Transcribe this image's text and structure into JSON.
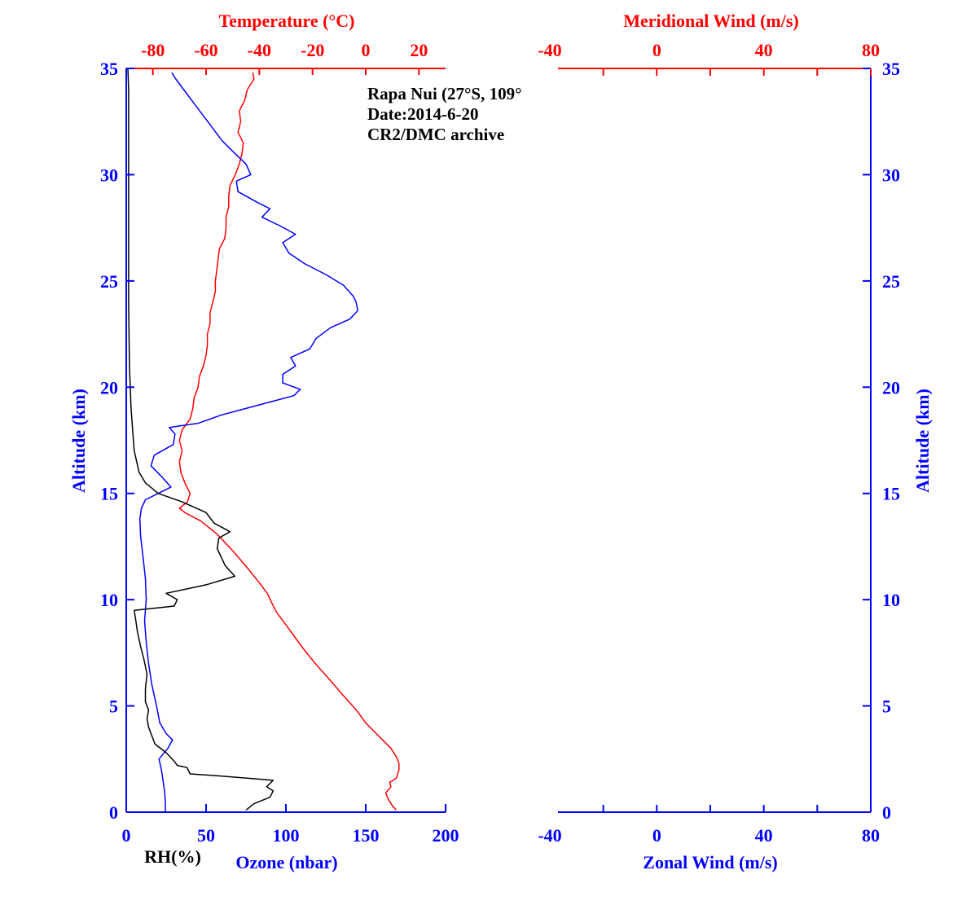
{
  "info": {
    "line1": "Rapa Nui (27°S, 109°",
    "line2": "Date:2014-6-20",
    "line3": "CR2/DMC archive"
  },
  "colors": {
    "ozone": "#0000ff",
    "temperature": "#ff0000",
    "rh": "#000000",
    "axis_blue": "#0000ff",
    "axis_red": "#ff0000"
  },
  "chart_data": [
    {
      "type": "line",
      "panel": "left",
      "xlabel": "Ozone (nbar)",
      "xlabel_secondary": "RH(%)",
      "x2label": "Temperature (°C)",
      "ylabel": "Altitude (km)",
      "xlim": [
        0,
        200
      ],
      "x2lim": [
        -90,
        30
      ],
      "ylim": [
        0,
        35
      ],
      "x_ticks": [
        0,
        50,
        100,
        150,
        200
      ],
      "x2_ticks": [
        -80,
        -60,
        -40,
        -20,
        0,
        20
      ],
      "y_ticks": [
        0,
        5,
        10,
        15,
        20,
        25,
        30,
        35
      ],
      "series": [
        {
          "name": "Temperature",
          "axis": "x2",
          "color": "#ff0000",
          "points": [
            [
              11.5,
              0.1
            ],
            [
              10.0,
              0.3
            ],
            [
              8.5,
              0.6
            ],
            [
              7.5,
              0.9
            ],
            [
              9.5,
              1.2
            ],
            [
              9.0,
              1.4
            ],
            [
              11.5,
              1.6
            ],
            [
              12.5,
              2.0
            ],
            [
              12.5,
              2.3
            ],
            [
              11.5,
              2.6
            ],
            [
              9.5,
              3.0
            ],
            [
              5.5,
              3.5
            ],
            [
              0.0,
              4.2
            ],
            [
              -3.5,
              4.8
            ],
            [
              -8.5,
              5.5
            ],
            [
              -14.0,
              6.3
            ],
            [
              -19.0,
              7.0
            ],
            [
              -23.5,
              7.7
            ],
            [
              -27.0,
              8.3
            ],
            [
              -30.5,
              8.9
            ],
            [
              -33.5,
              9.4
            ],
            [
              -35.5,
              9.9
            ],
            [
              -37.0,
              10.3
            ],
            [
              -40.0,
              10.8
            ],
            [
              -44.5,
              11.5
            ],
            [
              -50.0,
              12.3
            ],
            [
              -56.0,
              13.1
            ],
            [
              -62.0,
              13.7
            ],
            [
              -68.0,
              14.1
            ],
            [
              -70.0,
              14.3
            ],
            [
              -67.0,
              14.6
            ],
            [
              -66.0,
              15.0
            ],
            [
              -68.0,
              15.5
            ],
            [
              -69.5,
              16.0
            ],
            [
              -70.0,
              16.5
            ],
            [
              -69.0,
              17.0
            ],
            [
              -70.0,
              17.5
            ],
            [
              -69.0,
              18.0
            ],
            [
              -66.0,
              18.5
            ],
            [
              -65.0,
              19.0
            ],
            [
              -64.5,
              19.5
            ],
            [
              -63.0,
              20.0
            ],
            [
              -62.5,
              20.5
            ],
            [
              -61.0,
              21.0
            ],
            [
              -60.0,
              21.5
            ],
            [
              -59.5,
              22.0
            ],
            [
              -59.5,
              22.5
            ],
            [
              -58.5,
              23.0
            ],
            [
              -58.5,
              23.5
            ],
            [
              -57.5,
              24.0
            ],
            [
              -56.5,
              24.5
            ],
            [
              -56.5,
              25.0
            ],
            [
              -56.0,
              25.5
            ],
            [
              -55.5,
              26.0
            ],
            [
              -55.0,
              26.5
            ],
            [
              -53.0,
              27.0
            ],
            [
              -52.5,
              27.5
            ],
            [
              -52.5,
              28.0
            ],
            [
              -51.5,
              28.5
            ],
            [
              -51.5,
              29.0
            ],
            [
              -51.0,
              29.5
            ],
            [
              -49.0,
              30.0
            ],
            [
              -47.5,
              30.5
            ],
            [
              -46.5,
              31.0
            ],
            [
              -46.0,
              31.5
            ],
            [
              -48.0,
              32.0
            ],
            [
              -47.0,
              32.5
            ],
            [
              -47.5,
              33.0
            ],
            [
              -45.5,
              33.5
            ],
            [
              -44.5,
              34.0
            ],
            [
              -42.0,
              34.5
            ],
            [
              -42.5,
              34.8
            ]
          ]
        },
        {
          "name": "Ozone",
          "axis": "x",
          "color": "#0000ff",
          "points": [
            [
              24.5,
              0.0
            ],
            [
              24.5,
              0.5
            ],
            [
              24.0,
              1.0
            ],
            [
              23.0,
              1.5
            ],
            [
              22.0,
              2.0
            ],
            [
              20.5,
              2.5
            ],
            [
              26.0,
              3.0
            ],
            [
              29.0,
              3.4
            ],
            [
              25.0,
              3.7
            ],
            [
              21.0,
              4.2
            ],
            [
              19.0,
              5.0
            ],
            [
              16.0,
              6.0
            ],
            [
              14.0,
              7.0
            ],
            [
              12.5,
              8.0
            ],
            [
              11.5,
              9.0
            ],
            [
              12.5,
              10.0
            ],
            [
              12.0,
              11.0
            ],
            [
              10.5,
              12.0
            ],
            [
              9.0,
              13.0
            ],
            [
              8.5,
              13.8
            ],
            [
              9.5,
              14.3
            ],
            [
              12.0,
              14.7
            ],
            [
              20.0,
              15.0
            ],
            [
              28.0,
              15.3
            ],
            [
              22.0,
              15.8
            ],
            [
              15.5,
              16.3
            ],
            [
              17.5,
              16.8
            ],
            [
              29.5,
              17.3
            ],
            [
              30.5,
              17.8
            ],
            [
              27.0,
              18.1
            ],
            [
              45.0,
              18.3
            ],
            [
              60.0,
              18.7
            ],
            [
              75.0,
              19.0
            ],
            [
              90.0,
              19.3
            ],
            [
              105.0,
              19.6
            ],
            [
              109.0,
              19.9
            ],
            [
              98.0,
              20.2
            ],
            [
              98.0,
              20.6
            ],
            [
              106.0,
              21.0
            ],
            [
              103.0,
              21.4
            ],
            [
              115.0,
              21.8
            ],
            [
              119.0,
              22.3
            ],
            [
              128.0,
              22.8
            ],
            [
              140.0,
              23.2
            ],
            [
              145.0,
              23.6
            ],
            [
              144.0,
              24.0
            ],
            [
              142.0,
              24.3
            ],
            [
              136.0,
              24.8
            ],
            [
              125.0,
              25.3
            ],
            [
              112.0,
              25.8
            ],
            [
              102.0,
              26.3
            ],
            [
              98.0,
              26.8
            ],
            [
              106.0,
              27.2
            ],
            [
              96.0,
              27.6
            ],
            [
              85.0,
              28.0
            ],
            [
              90.0,
              28.4
            ],
            [
              82.0,
              28.7
            ],
            [
              70.0,
              29.2
            ],
            [
              69.0,
              29.7
            ],
            [
              78.0,
              30.0
            ],
            [
              75.0,
              30.5
            ],
            [
              68.0,
              31.0
            ],
            [
              60.0,
              31.6
            ],
            [
              55.0,
              32.1
            ],
            [
              50.0,
              32.6
            ],
            [
              45.0,
              33.1
            ],
            [
              40.0,
              33.6
            ],
            [
              35.0,
              34.1
            ],
            [
              31.0,
              34.5
            ],
            [
              28.5,
              34.8
            ]
          ]
        },
        {
          "name": "RH",
          "axis": "x",
          "color": "#000000",
          "points": [
            [
              75.0,
              0.1
            ],
            [
              80.0,
              0.4
            ],
            [
              90.0,
              0.7
            ],
            [
              92.0,
              1.0
            ],
            [
              88.0,
              1.2
            ],
            [
              92.0,
              1.5
            ],
            [
              60.0,
              1.7
            ],
            [
              40.0,
              1.8
            ],
            [
              38.0,
              2.1
            ],
            [
              32.0,
              2.2
            ],
            [
              30.0,
              2.4
            ],
            [
              25.0,
              2.8
            ],
            [
              18.0,
              3.2
            ],
            [
              16.0,
              3.6
            ],
            [
              14.0,
              4.0
            ],
            [
              13.0,
              4.4
            ],
            [
              14.0,
              4.8
            ],
            [
              12.0,
              5.2
            ],
            [
              12.0,
              5.8
            ],
            [
              13.0,
              6.5
            ],
            [
              11.0,
              7.2
            ],
            [
              9.0,
              7.8
            ],
            [
              7.0,
              8.5
            ],
            [
              6.0,
              9.0
            ],
            [
              5.0,
              9.5
            ],
            [
              30.0,
              9.7
            ],
            [
              32.0,
              10.0
            ],
            [
              25.0,
              10.3
            ],
            [
              50.0,
              10.7
            ],
            [
              68.0,
              11.1
            ],
            [
              62.0,
              11.6
            ],
            [
              57.0,
              12.4
            ],
            [
              58.0,
              12.9
            ],
            [
              65.0,
              13.2
            ],
            [
              55.0,
              13.6
            ],
            [
              50.0,
              14.1
            ],
            [
              35.0,
              14.6
            ],
            [
              20.0,
              15.0
            ],
            [
              12.0,
              15.5
            ],
            [
              8.0,
              16.0
            ],
            [
              5.0,
              17.0
            ],
            [
              4.0,
              18.0
            ],
            [
              3.0,
              19.0
            ],
            [
              2.5,
              20.0
            ],
            [
              2.0,
              21.0
            ],
            [
              1.5,
              24.0
            ],
            [
              1.5,
              28.0
            ],
            [
              1.5,
              32.0
            ],
            [
              1.5,
              34.0
            ],
            [
              1.0,
              35.0
            ]
          ]
        }
      ]
    },
    {
      "type": "line",
      "panel": "right",
      "xlabel": "Zonal Wind (m/s)",
      "x2label": "Meridional Wind (m/s)",
      "ylabel": "Altitude (km)",
      "xlim": [
        -40,
        80
      ],
      "ylim": [
        0,
        35
      ],
      "x_ticks": [
        -40,
        0,
        40,
        80
      ],
      "x2_ticks": [
        -40,
        0,
        40,
        80
      ],
      "y_ticks": [
        0,
        5,
        10,
        15,
        20,
        25,
        30,
        35
      ],
      "series": []
    }
  ]
}
